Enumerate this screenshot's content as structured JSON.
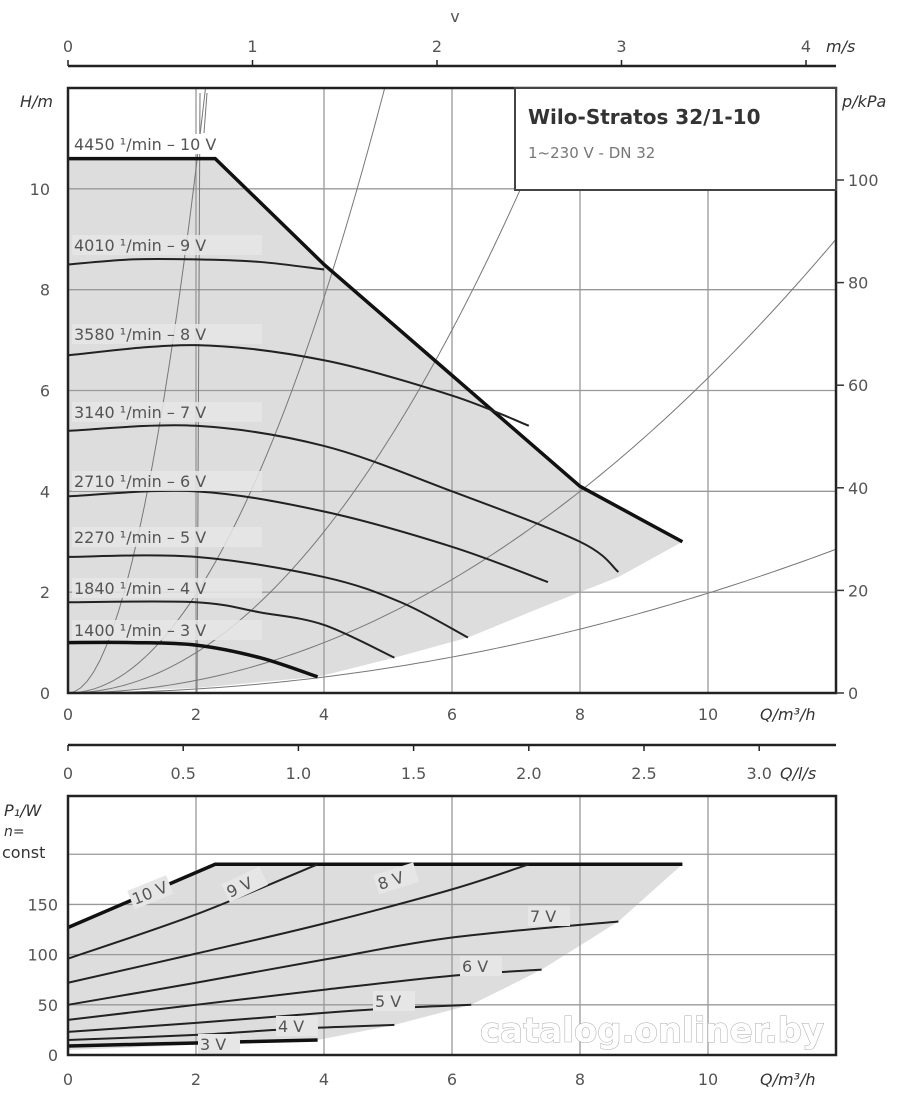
{
  "chart_data": [
    {
      "type": "line",
      "title": "Wilo-Stratos 32/1-10",
      "subtitle": "1~230 V - DN 32",
      "xlabel": "Q/m³/h",
      "ylabel": "H/m",
      "y2label": "p/kPa",
      "top_axis_label": "v",
      "top_axis_unit": "m/s",
      "bottom_axis2_label": "Q/l/s",
      "xlim": [
        0,
        12
      ],
      "ylim": [
        0,
        12
      ],
      "grid": true,
      "x_ticks": [
        "0",
        "2",
        "4",
        "6",
        "8",
        "10"
      ],
      "y_ticks": [
        "0",
        "2",
        "4",
        "6",
        "8",
        "10"
      ],
      "y2_ticks": [
        "0",
        "20",
        "40",
        "60",
        "80",
        "100"
      ],
      "v_ticks": [
        "0",
        "1",
        "2",
        "3",
        "4"
      ],
      "qls_ticks": [
        "0",
        "0.5",
        "1.0",
        "1.5",
        "2.0",
        "2.5",
        "3.0"
      ],
      "series": [
        {
          "name": "4450 ¹/min – 10 V",
          "x": [
            0,
            2.3,
            4,
            6,
            8,
            9.6
          ],
          "y": [
            10.6,
            10.6,
            8.5,
            6.3,
            4.1,
            3.0
          ],
          "max": true
        },
        {
          "name": "4010 ¹/min – 9 V",
          "x": [
            0,
            1,
            2,
            3,
            4
          ],
          "y": [
            8.5,
            8.6,
            8.6,
            8.55,
            8.4
          ]
        },
        {
          "name": "3580 ¹/min – 8 V",
          "x": [
            0,
            2,
            4,
            6,
            7.2
          ],
          "y": [
            6.7,
            6.9,
            6.6,
            5.9,
            5.3
          ]
        },
        {
          "name": "3140 ¹/min – 7 V",
          "x": [
            0,
            2,
            4,
            6,
            8,
            8.6
          ],
          "y": [
            5.2,
            5.3,
            4.9,
            4.0,
            3.0,
            2.4
          ]
        },
        {
          "name": "2710 ¹/min – 6 V",
          "x": [
            0,
            2,
            4,
            6,
            7.5
          ],
          "y": [
            3.9,
            4.0,
            3.6,
            2.9,
            2.2
          ]
        },
        {
          "name": "2270 ¹/min – 5 V",
          "x": [
            0,
            2,
            4,
            5.2,
            6.25
          ],
          "y": [
            2.7,
            2.7,
            2.3,
            1.8,
            1.1
          ]
        },
        {
          "name": "1840 ¹/min – 4 V",
          "x": [
            0,
            2,
            3,
            4,
            5.1
          ],
          "y": [
            1.8,
            1.8,
            1.6,
            1.35,
            0.7
          ]
        },
        {
          "name": "1400 ¹/min – 3 V",
          "x": [
            0,
            1,
            2,
            3,
            3.9
          ],
          "y": [
            1.0,
            1.0,
            0.95,
            0.7,
            0.32
          ],
          "max": true
        }
      ],
      "operating_range_lower": {
        "x": [
          0,
          2,
          3.9,
          5.1,
          6.25,
          7.5,
          8.6,
          9.6
        ],
        "y": [
          0,
          0.1,
          0.32,
          0.7,
          1.1,
          1.75,
          2.3,
          3.0
        ]
      },
      "system_curves_k": [
        2.6,
        0.49,
        0.2,
        0.0625,
        0.0198
      ]
    },
    {
      "type": "line",
      "ylabel": "P₁/W",
      "ylabel2": "n=",
      "ylabel3": "const",
      "xlabel": "Q/m³/h",
      "xlim": [
        0,
        12
      ],
      "ylim": [
        0,
        258
      ],
      "grid": true,
      "x_ticks": [
        "0",
        "2",
        "4",
        "6",
        "8",
        "10"
      ],
      "y_ticks": [
        "0",
        "50",
        "100",
        "150"
      ],
      "series": [
        {
          "name": "10 V",
          "x": [
            0,
            2.3,
            9.6
          ],
          "y": [
            127,
            190,
            190
          ],
          "max": true
        },
        {
          "name": "9 V",
          "x": [
            0,
            2,
            3.9
          ],
          "y": [
            96,
            140,
            190
          ]
        },
        {
          "name": "8 V",
          "x": [
            0,
            2,
            4,
            6,
            7.2
          ],
          "y": [
            72,
            101,
            131,
            165,
            190
          ]
        },
        {
          "name": "7 V",
          "x": [
            0,
            2,
            4,
            6,
            8.6
          ],
          "y": [
            50,
            72,
            95,
            117,
            133
          ]
        },
        {
          "name": "6 V",
          "x": [
            0,
            2,
            4,
            6,
            7.4
          ],
          "y": [
            35,
            50,
            65,
            79,
            85
          ]
        },
        {
          "name": "5 V",
          "x": [
            0,
            2,
            4,
            5.2,
            6.3
          ],
          "y": [
            23,
            32,
            42,
            47,
            50
          ]
        },
        {
          "name": "4 V",
          "x": [
            0,
            2,
            3.5,
            5.1
          ],
          "y": [
            15,
            20,
            26,
            30
          ]
        },
        {
          "name": "3 V",
          "x": [
            0,
            2,
            3.9
          ],
          "y": [
            9,
            12,
            15
          ],
          "max": true
        }
      ],
      "operating_range_lower": {
        "x": [
          0,
          3.9,
          5.1,
          6.3,
          7.4,
          8.6,
          9.6
        ],
        "y": [
          5,
          15,
          30,
          50,
          85,
          133,
          190
        ]
      }
    }
  ],
  "watermark": "catalog.onliner.by"
}
